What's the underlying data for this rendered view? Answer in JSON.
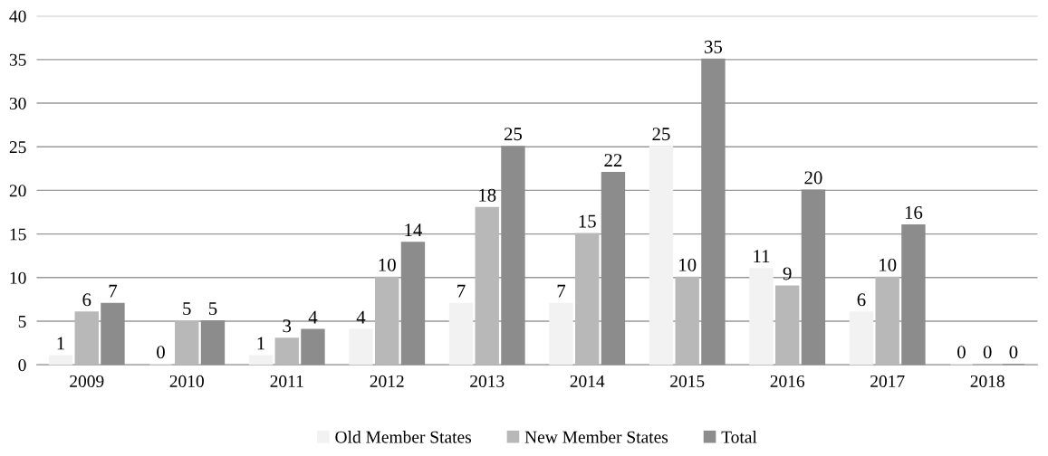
{
  "chart_data": {
    "type": "bar",
    "categories": [
      "2009",
      "2010",
      "2011",
      "2012",
      "2013",
      "2014",
      "2015",
      "2016",
      "2017",
      "2018"
    ],
    "series": [
      {
        "name": "Old Member States",
        "color": "#f2f2f2",
        "values": [
          1,
          0,
          1,
          4,
          7,
          7,
          25,
          11,
          6,
          0
        ]
      },
      {
        "name": "New Member States",
        "color": "#b8b8b8",
        "values": [
          6,
          5,
          3,
          10,
          18,
          15,
          10,
          9,
          10,
          0
        ]
      },
      {
        "name": "Total",
        "color": "#8c8c8c",
        "values": [
          7,
          5,
          4,
          14,
          25,
          22,
          35,
          20,
          16,
          0
        ]
      }
    ],
    "ylim": [
      0,
      40
    ],
    "yticks": [
      0,
      5,
      10,
      15,
      20,
      25,
      30,
      35,
      40
    ],
    "grid": "y",
    "legend": "bottom",
    "data_labels": true
  }
}
